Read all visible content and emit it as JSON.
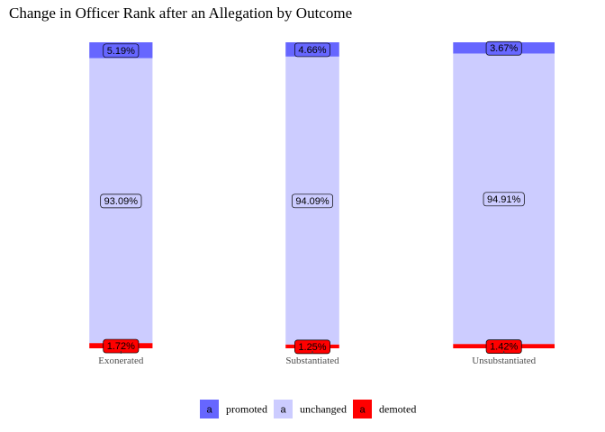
{
  "chart_data": {
    "type": "bar",
    "stacked": true,
    "orientation": "vertical",
    "title": "Change in Officer Rank after an Allegation by Outcome",
    "xlabel": "",
    "ylabel": "",
    "ylim": [
      0,
      100
    ],
    "grid": false,
    "legend_position": "bottom",
    "legend_key_label": "a",
    "categories": [
      "Exonerated",
      "Substantiated",
      "Unsubstantiated"
    ],
    "series": [
      {
        "name": "promoted",
        "color": "#6666ff",
        "values": [
          5.19,
          4.66,
          3.67
        ],
        "labels": [
          "5.19%",
          "4.66%",
          "3.67%"
        ]
      },
      {
        "name": "unchanged",
        "color": "#ccccff",
        "values": [
          93.09,
          94.09,
          94.91
        ],
        "labels": [
          "93.09%",
          "94.09%",
          "94.91%"
        ]
      },
      {
        "name": "demoted",
        "color": "#ff0000",
        "values": [
          1.72,
          1.25,
          1.42
        ],
        "labels": [
          "1.72%",
          "1.25%",
          "1.42%"
        ]
      }
    ]
  }
}
